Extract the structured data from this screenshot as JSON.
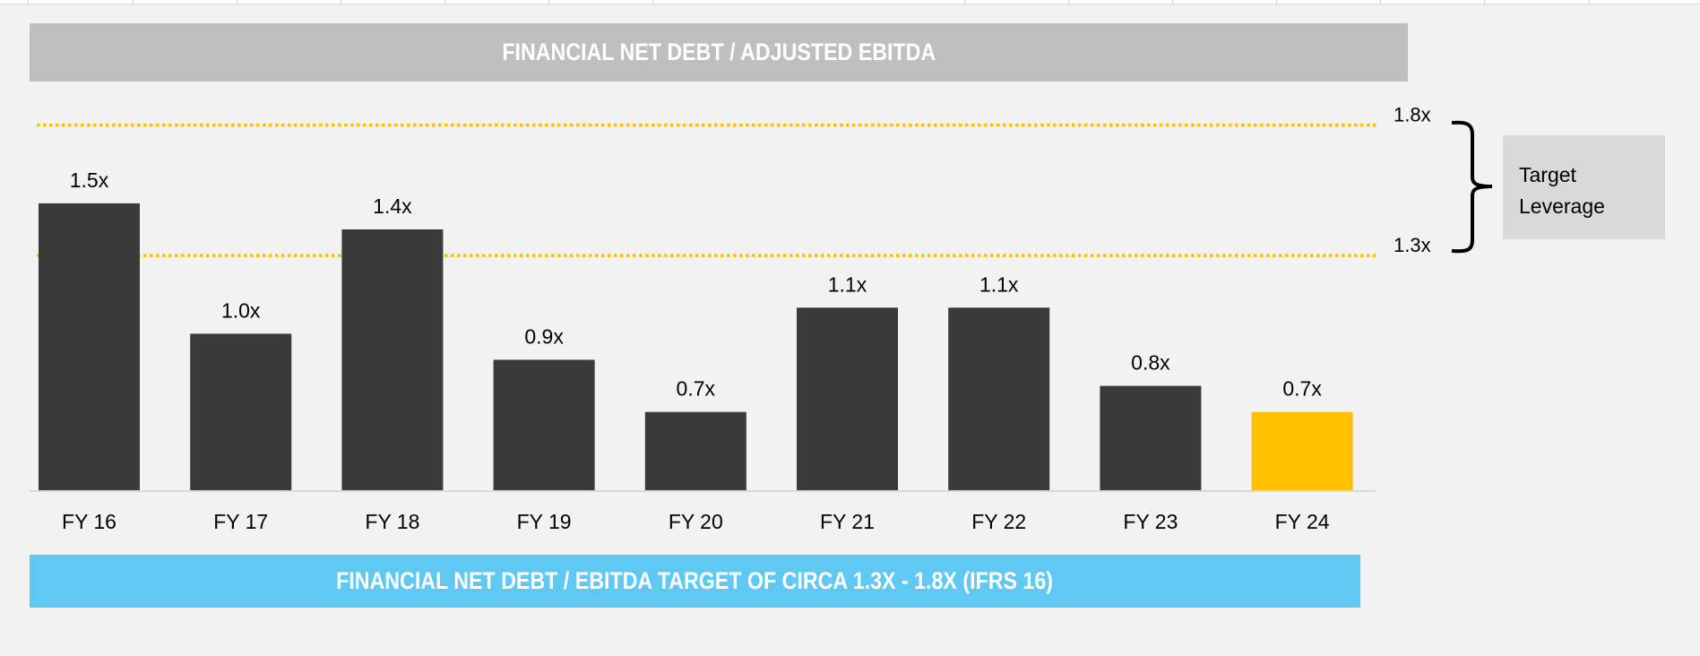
{
  "chart_data": {
    "type": "bar",
    "title": "FINANCIAL NET DEBT / ADJUSTED EBITDA",
    "categories": [
      "FY 16",
      "FY 17",
      "FY 18",
      "FY 19",
      "FY 20",
      "FY 21",
      "FY 22",
      "FY 23",
      "FY 24"
    ],
    "values": [
      1.5,
      1.0,
      1.4,
      0.9,
      0.7,
      1.1,
      1.1,
      0.8,
      0.7
    ],
    "value_labels": [
      "1.5x",
      "1.0x",
      "1.4x",
      "0.9x",
      "0.7x",
      "1.1x",
      "1.1x",
      "0.8x",
      "0.7x"
    ],
    "xlabel": "",
    "ylabel": "",
    "ylim": [
      0.4,
      1.8
    ],
    "grid": false,
    "highlight_index": 8,
    "reference_lines": [
      {
        "value": 1.8,
        "label": "1.8x"
      },
      {
        "value": 1.3,
        "label": "1.3x"
      }
    ],
    "annotation": "Target Leverage",
    "footer": "FINANCIAL NET DEBT / EBITDA TARGET OF CIRCA 1.3X - 1.8X (IFRS 16)"
  },
  "annotation_lines": [
    "Target",
    "Leverage"
  ],
  "colors": {
    "bar": "#3a3a3a",
    "highlight": "#ffc000",
    "reference_line": "#ffc000",
    "title_bg": "#bfbfbf",
    "footer_bg": "#60c9f3",
    "annotation_bg": "#d9d9d9"
  }
}
